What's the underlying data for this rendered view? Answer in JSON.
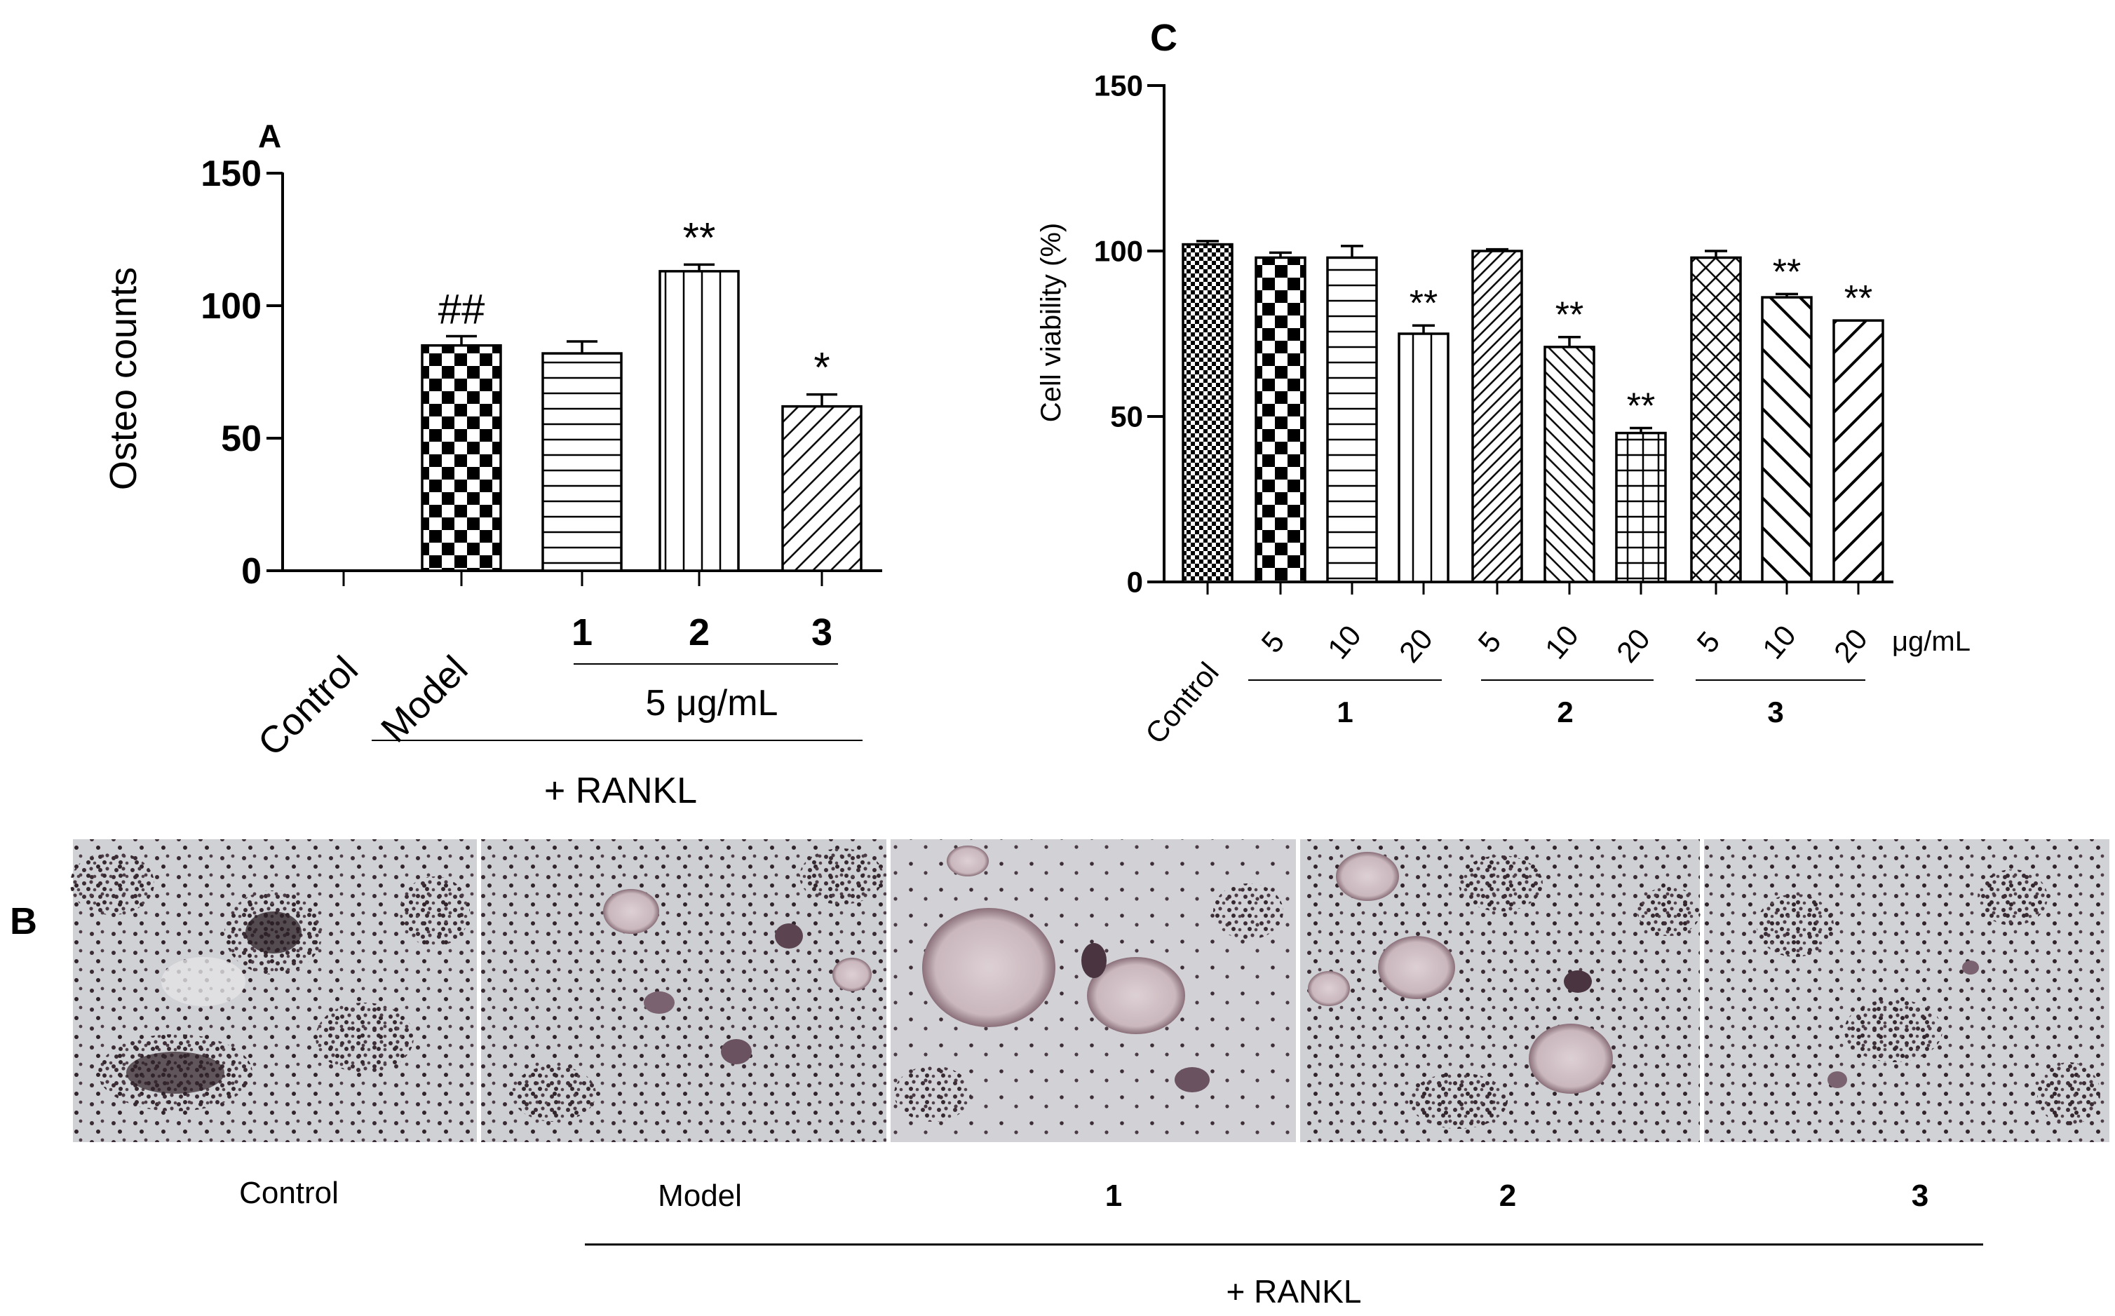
{
  "panels": {
    "a": "A",
    "b": "B",
    "c": "C"
  },
  "chart_data": [
    {
      "id": "A",
      "type": "bar",
      "title": "",
      "ylabel": "Osteo counts",
      "xlabel": "",
      "ylim": [
        0,
        150
      ],
      "yticks": [
        0,
        50,
        100,
        150
      ],
      "grid": false,
      "legend": "none",
      "categories": [
        "Control",
        "Model",
        "1",
        "2",
        "3"
      ],
      "values": [
        0,
        85,
        82,
        113,
        62
      ],
      "errors": [
        0,
        3.5,
        4.5,
        2.5,
        4.5
      ],
      "patterns": [
        "none",
        "checker",
        "hlines",
        "vlines",
        "diag-right"
      ],
      "significance": [
        "",
        "##",
        "",
        "**",
        "*"
      ],
      "group_labels": {
        "dose": "5 μg/mL",
        "treatment": "+ RANKL"
      }
    },
    {
      "id": "C",
      "type": "bar",
      "title": "",
      "ylabel": "Cell viability (%)",
      "xlabel": "",
      "ylim": [
        0,
        150
      ],
      "yticks": [
        0,
        50,
        100,
        150
      ],
      "grid": false,
      "legend": "none",
      "categories": [
        "Control",
        "5",
        "10",
        "20",
        "5",
        "10",
        "20",
        "5",
        "10",
        "20"
      ],
      "values": [
        102,
        98,
        98,
        75,
        100,
        71,
        45,
        98,
        86,
        79
      ],
      "errors": [
        1,
        1.5,
        3.5,
        2.5,
        0.5,
        3,
        1.5,
        2,
        1,
        0
      ],
      "patterns": [
        "fine-checker",
        "checker",
        "hlines",
        "vlines",
        "diag-right-dense",
        "diag-left",
        "grid",
        "diamond",
        "diag-left-wide",
        "diag-right-wide"
      ],
      "significance": [
        "",
        "",
        "",
        "**",
        "",
        "**",
        "**",
        "",
        "**",
        "**"
      ],
      "groups": [
        {
          "label": "1",
          "categories": [
            "5",
            "10",
            "20"
          ]
        },
        {
          "label": "2",
          "categories": [
            "5",
            "10",
            "20"
          ]
        },
        {
          "label": "3",
          "categories": [
            "5",
            "10",
            "20"
          ]
        }
      ],
      "unit_label": "μg/mL"
    }
  ],
  "micrographs": {
    "captions": [
      "Control",
      "Model",
      "1",
      "2",
      "3"
    ],
    "treatment_label": "+ RANKL"
  }
}
